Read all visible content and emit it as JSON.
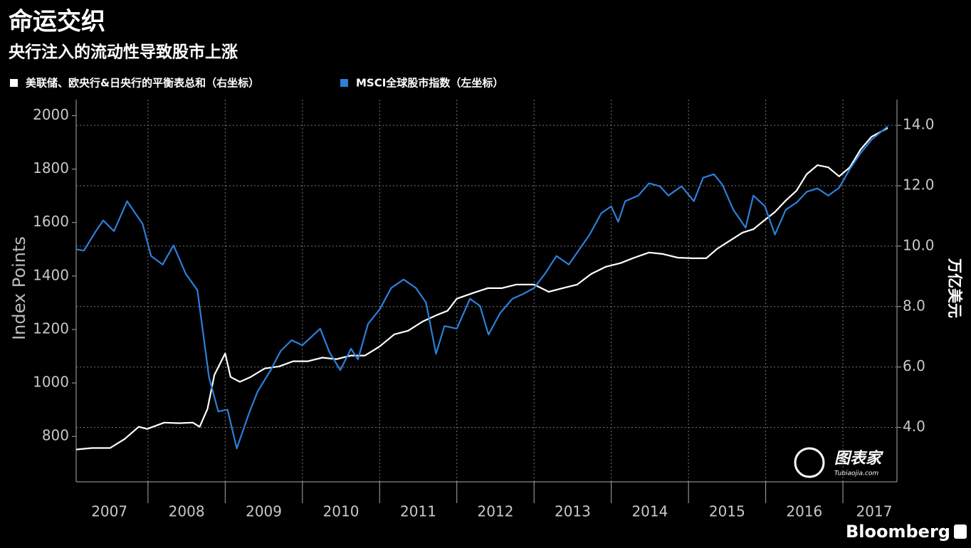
{
  "chart_data": {
    "type": "line",
    "title": "命运交织",
    "subtitle": "央行注入的流动性导致股市上涨",
    "ylabel": "Index Points",
    "y2label": "万亿美元",
    "source": "Bloomberg",
    "watermark": "图表家",
    "watermark_sub": "Tubiaojia.com",
    "categories": [
      "2007",
      "2008",
      "2009",
      "2010",
      "2011",
      "2012",
      "2013",
      "2014",
      "2015",
      "2016",
      "2017"
    ],
    "xlim": [
      2007.07,
      2017.7
    ],
    "xticks": [
      2008,
      2009,
      2010,
      2011,
      2012,
      2013,
      2014,
      2015,
      2016,
      2017
    ],
    "ylim": [
      630,
      2060
    ],
    "yticks": [
      800,
      1000,
      1200,
      1400,
      1600,
      1800,
      2000
    ],
    "y2lim": [
      2.2,
      14.85
    ],
    "y2ticks": [
      {
        "value": 4,
        "label": "4.0"
      },
      {
        "value": 6,
        "label": "6.0"
      },
      {
        "value": 8,
        "label": "8.0"
      },
      {
        "value": 10,
        "label": "10.0"
      },
      {
        "value": 12,
        "label": "12.0"
      },
      {
        "value": 14,
        "label": "14.0"
      }
    ],
    "grid": true,
    "legend": "top-left",
    "series": [
      {
        "name": "美联储、欧央行&日央行的平衡表总和（右坐标）",
        "color": "#ffffff",
        "axis": "y2",
        "x": [
          2007.07,
          2007.28,
          2007.51,
          2007.7,
          2007.88,
          2007.99,
          2008.21,
          2008.4,
          2008.58,
          2008.67,
          2008.77,
          2008.86,
          2009.0,
          2009.07,
          2009.19,
          2009.33,
          2009.51,
          2009.7,
          2009.88,
          2010.07,
          2010.26,
          2010.44,
          2010.63,
          2010.81,
          2011.0,
          2011.19,
          2011.37,
          2011.56,
          2011.74,
          2011.88,
          2012.0,
          2012.21,
          2012.4,
          2012.58,
          2012.77,
          2013.0,
          2013.19,
          2013.37,
          2013.56,
          2013.74,
          2013.93,
          2014.12,
          2014.3,
          2014.49,
          2014.67,
          2014.86,
          2015.05,
          2015.23,
          2015.37,
          2015.51,
          2015.7,
          2015.84,
          2015.98,
          2016.12,
          2016.26,
          2016.4,
          2016.53,
          2016.67,
          2016.81,
          2016.95,
          2017.09,
          2017.23,
          2017.37,
          2017.58
        ],
        "values": [
          3.27,
          3.32,
          3.32,
          3.62,
          4.02,
          3.95,
          4.16,
          4.14,
          4.16,
          4.02,
          4.61,
          5.74,
          6.45,
          5.67,
          5.51,
          5.67,
          5.95,
          6.02,
          6.19,
          6.19,
          6.31,
          6.26,
          6.38,
          6.38,
          6.68,
          7.08,
          7.2,
          7.51,
          7.72,
          7.86,
          8.26,
          8.45,
          8.61,
          8.61,
          8.73,
          8.73,
          8.49,
          8.61,
          8.73,
          9.08,
          9.32,
          9.44,
          9.62,
          9.79,
          9.74,
          9.62,
          9.6,
          9.6,
          9.91,
          10.14,
          10.45,
          10.56,
          10.85,
          11.13,
          11.51,
          11.84,
          12.38,
          12.68,
          12.61,
          12.31,
          12.61,
          13.2,
          13.62,
          13.91
        ]
      },
      {
        "name": "MSCI全球股市指数（左坐标）",
        "color": "#2d7fd9",
        "axis": "y",
        "x": [
          2007.07,
          2007.17,
          2007.33,
          2007.42,
          2007.56,
          2007.73,
          2007.93,
          2008.04,
          2008.19,
          2008.33,
          2008.49,
          2008.64,
          2008.79,
          2008.91,
          2009.03,
          2009.15,
          2009.31,
          2009.42,
          2009.59,
          2009.72,
          2009.86,
          2010.0,
          2010.23,
          2010.35,
          2010.49,
          2010.63,
          2010.72,
          2010.85,
          2011.0,
          2011.15,
          2011.31,
          2011.47,
          2011.6,
          2011.73,
          2011.84,
          2012.0,
          2012.17,
          2012.3,
          2012.41,
          2012.56,
          2012.72,
          2012.86,
          2013.0,
          2013.14,
          2013.29,
          2013.45,
          2013.59,
          2013.72,
          2013.87,
          2014.0,
          2014.09,
          2014.18,
          2014.35,
          2014.49,
          2014.63,
          2014.74,
          2014.91,
          2015.07,
          2015.19,
          2015.33,
          2015.44,
          2015.58,
          2015.74,
          2015.84,
          2015.99,
          2016.12,
          2016.26,
          2016.4,
          2016.53,
          2016.67,
          2016.81,
          2016.95,
          2017.09,
          2017.23,
          2017.37,
          2017.58
        ],
        "values": [
          1500,
          1495,
          1570,
          1608,
          1568,
          1680,
          1595,
          1475,
          1443,
          1515,
          1408,
          1347,
          1021,
          893,
          900,
          755,
          888,
          968,
          1048,
          1120,
          1160,
          1141,
          1203,
          1115,
          1048,
          1128,
          1088,
          1221,
          1275,
          1355,
          1387,
          1355,
          1301,
          1109,
          1213,
          1203,
          1315,
          1288,
          1181,
          1261,
          1315,
          1333,
          1355,
          1408,
          1475,
          1443,
          1501,
          1555,
          1635,
          1661,
          1603,
          1680,
          1701,
          1747,
          1736,
          1701,
          1736,
          1680,
          1768,
          1781,
          1741,
          1648,
          1581,
          1701,
          1661,
          1555,
          1648,
          1675,
          1715,
          1728,
          1701,
          1730,
          1800,
          1860,
          1910,
          1960
        ]
      }
    ]
  }
}
